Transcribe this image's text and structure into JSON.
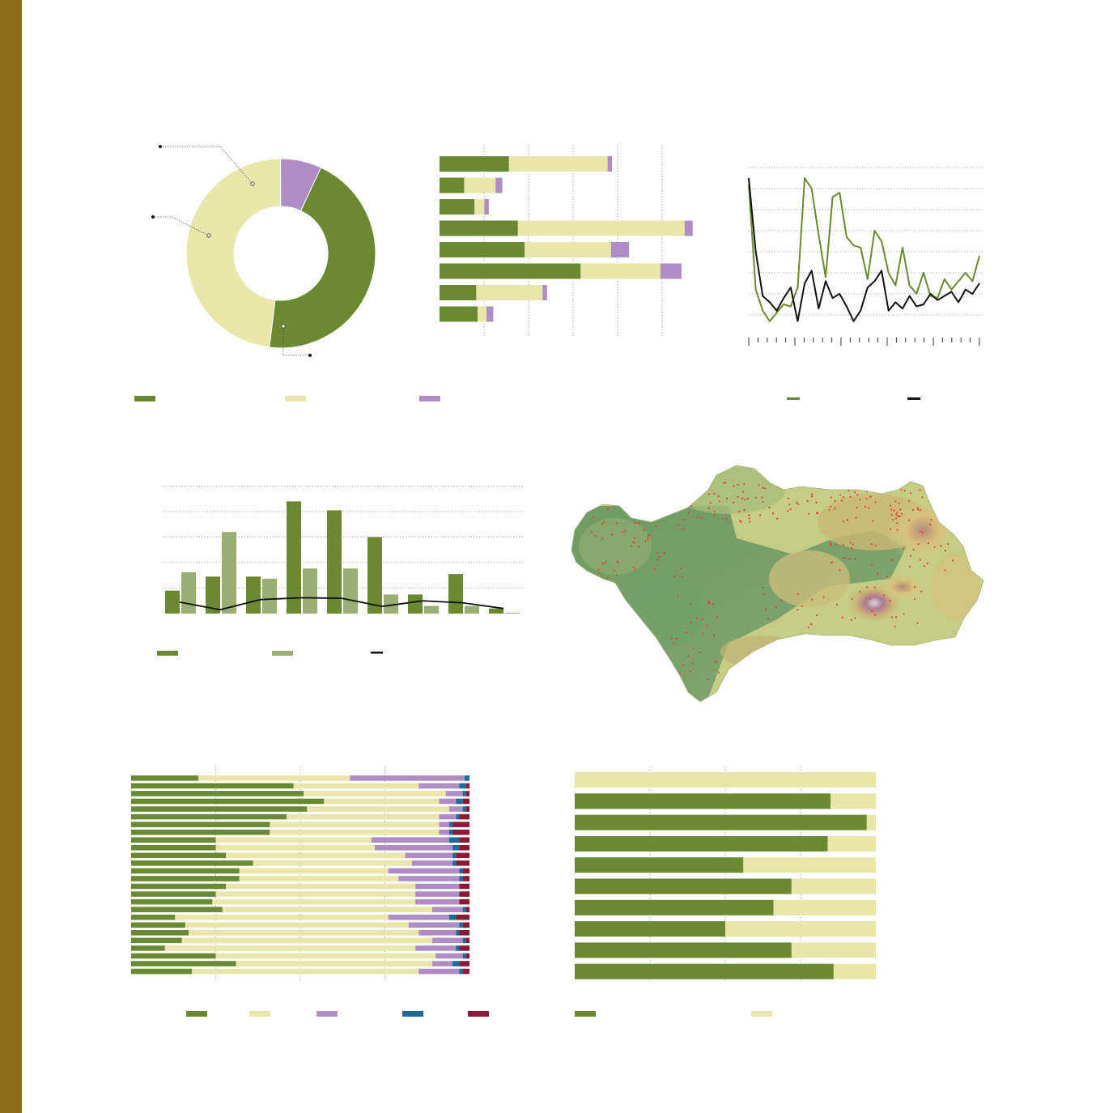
{
  "colors": {
    "sidebar": "#8C6D1A",
    "green": "#6B8930",
    "cream": "#E8E6A8",
    "lilac": "#AF8DC4",
    "lightgreen": "#9AAE73",
    "blue": "#1A6A9E",
    "crimson": "#8C1A37",
    "black": "#111111",
    "grid": "#9a9a9a",
    "dot": "#E0423A"
  },
  "chart_data": [
    {
      "id": "donut",
      "type": "pie",
      "donut": true,
      "slices": [
        {
          "color_key": "green",
          "value": 0.45
        },
        {
          "color_key": "cream",
          "value": 0.48
        },
        {
          "color_key": "lilac",
          "value": 0.07
        }
      ],
      "legend": [
        "green",
        "cream",
        "lilac"
      ]
    },
    {
      "id": "hbar-stacked",
      "type": "bar",
      "orientation": "horizontal",
      "stacked": true,
      "xlim": [
        0,
        560
      ],
      "series": [
        {
          "color_key": "green",
          "values": [
            155,
            55,
            78,
            175,
            190,
            315,
            82,
            85
          ]
        },
        {
          "color_key": "cream",
          "values": [
            220,
            70,
            22,
            372,
            193,
            178,
            148,
            20
          ]
        },
        {
          "color_key": "lilac",
          "values": [
            10,
            15,
            10,
            18,
            40,
            47,
            10,
            15
          ]
        }
      ]
    },
    {
      "id": "line-years",
      "type": "line",
      "ylim": [
        0,
        8
      ],
      "series": [
        {
          "color_key": "green",
          "values": [
            7.2,
            2.2,
            1.2,
            0.7,
            1.1,
            1.5,
            1.4,
            2.3,
            7.5,
            7.0,
            4.8,
            2.8,
            6.6,
            6.8,
            4.7,
            4.3,
            4.2,
            2.7,
            5.0,
            4.5,
            3.0,
            2.4,
            4.2,
            2.4,
            2.0,
            3.0,
            1.9,
            1.8,
            2.7,
            2.2,
            2.6,
            3.0,
            2.6,
            3.8
          ]
        },
        {
          "color_key": "black",
          "values": [
            7.5,
            4.0,
            1.9,
            1.6,
            1.2,
            1.8,
            2.3,
            0.7,
            2.5,
            3.1,
            1.3,
            2.6,
            1.8,
            2.0,
            1.4,
            0.7,
            1.2,
            2.3,
            2.6,
            3.1,
            1.2,
            1.6,
            1.3,
            1.9,
            1.4,
            1.5,
            2.0,
            1.7,
            1.9,
            2.1,
            1.6,
            2.2,
            2.0,
            2.5
          ]
        }
      ],
      "legend": [
        "green",
        "black"
      ]
    },
    {
      "id": "grouped-bar",
      "type": "bar",
      "ylim": [
        0,
        5
      ],
      "series": [
        {
          "color_key": "green",
          "values": [
            0.9,
            1.45,
            1.45,
            4.4,
            4.05,
            3.0,
            0.75,
            1.55,
            0.2
          ]
        },
        {
          "color_key": "lightgreen",
          "values": [
            1.62,
            3.2,
            1.37,
            1.77,
            1.77,
            0.75,
            0.3,
            0.3,
            0.03
          ]
        },
        {
          "color_key": "black",
          "values": [
            0.45,
            0.15,
            0.55,
            0.62,
            0.6,
            0.28,
            0.5,
            0.42,
            0.2
          ]
        }
      ],
      "legend": [
        "green",
        "lightgreen",
        "black"
      ]
    },
    {
      "id": "stacked-100-left",
      "type": "bar",
      "orientation": "horizontal",
      "stacked": true,
      "normalized": true,
      "rows": [
        [
          0.2,
          0.45,
          0.34,
          0.015,
          0.0
        ],
        [
          0.48,
          0.37,
          0.12,
          0.02,
          0.01
        ],
        [
          0.51,
          0.42,
          0.05,
          0.01,
          0.01
        ],
        [
          0.57,
          0.34,
          0.05,
          0.02,
          0.02
        ],
        [
          0.52,
          0.42,
          0.04,
          0.01,
          0.01
        ],
        [
          0.46,
          0.45,
          0.05,
          0.01,
          0.03
        ],
        [
          0.41,
          0.5,
          0.03,
          0.01,
          0.05
        ],
        [
          0.41,
          0.5,
          0.03,
          0.01,
          0.05
        ],
        [
          0.25,
          0.46,
          0.23,
          0.03,
          0.03
        ],
        [
          0.25,
          0.47,
          0.23,
          0.02,
          0.03
        ],
        [
          0.28,
          0.53,
          0.14,
          0.01,
          0.04
        ],
        [
          0.36,
          0.47,
          0.12,
          0.01,
          0.04
        ],
        [
          0.32,
          0.44,
          0.21,
          0.01,
          0.02
        ],
        [
          0.32,
          0.47,
          0.18,
          0.01,
          0.02
        ],
        [
          0.28,
          0.56,
          0.13,
          0.0,
          0.03
        ],
        [
          0.25,
          0.59,
          0.13,
          0.0,
          0.03
        ],
        [
          0.24,
          0.6,
          0.13,
          0.0,
          0.03
        ],
        [
          0.27,
          0.62,
          0.09,
          0.01,
          0.01
        ],
        [
          0.13,
          0.63,
          0.18,
          0.02,
          0.04
        ],
        [
          0.16,
          0.66,
          0.15,
          0.01,
          0.02
        ],
        [
          0.17,
          0.68,
          0.11,
          0.01,
          0.03
        ],
        [
          0.15,
          0.74,
          0.09,
          0.01,
          0.01
        ],
        [
          0.1,
          0.74,
          0.12,
          0.01,
          0.03
        ],
        [
          0.25,
          0.65,
          0.08,
          0.01,
          0.01
        ],
        [
          0.31,
          0.58,
          0.06,
          0.02,
          0.03
        ],
        [
          0.18,
          0.67,
          0.12,
          0.01,
          0.02
        ]
      ],
      "series_colors": [
        "green",
        "cream",
        "lilac",
        "blue",
        "crimson"
      ]
    },
    {
      "id": "stacked-100-right",
      "type": "bar",
      "orientation": "horizontal",
      "stacked": true,
      "normalized": true,
      "rows": [
        [
          0.0,
          1.0
        ],
        [
          0.85,
          0.15
        ],
        [
          0.97,
          0.03
        ],
        [
          0.84,
          0.16
        ],
        [
          0.56,
          0.44
        ],
        [
          0.72,
          0.28
        ],
        [
          0.66,
          0.34
        ],
        [
          0.5,
          0.5
        ],
        [
          0.72,
          0.28
        ],
        [
          0.86,
          0.14
        ]
      ],
      "series_colors": [
        "green",
        "cream"
      ]
    }
  ]
}
